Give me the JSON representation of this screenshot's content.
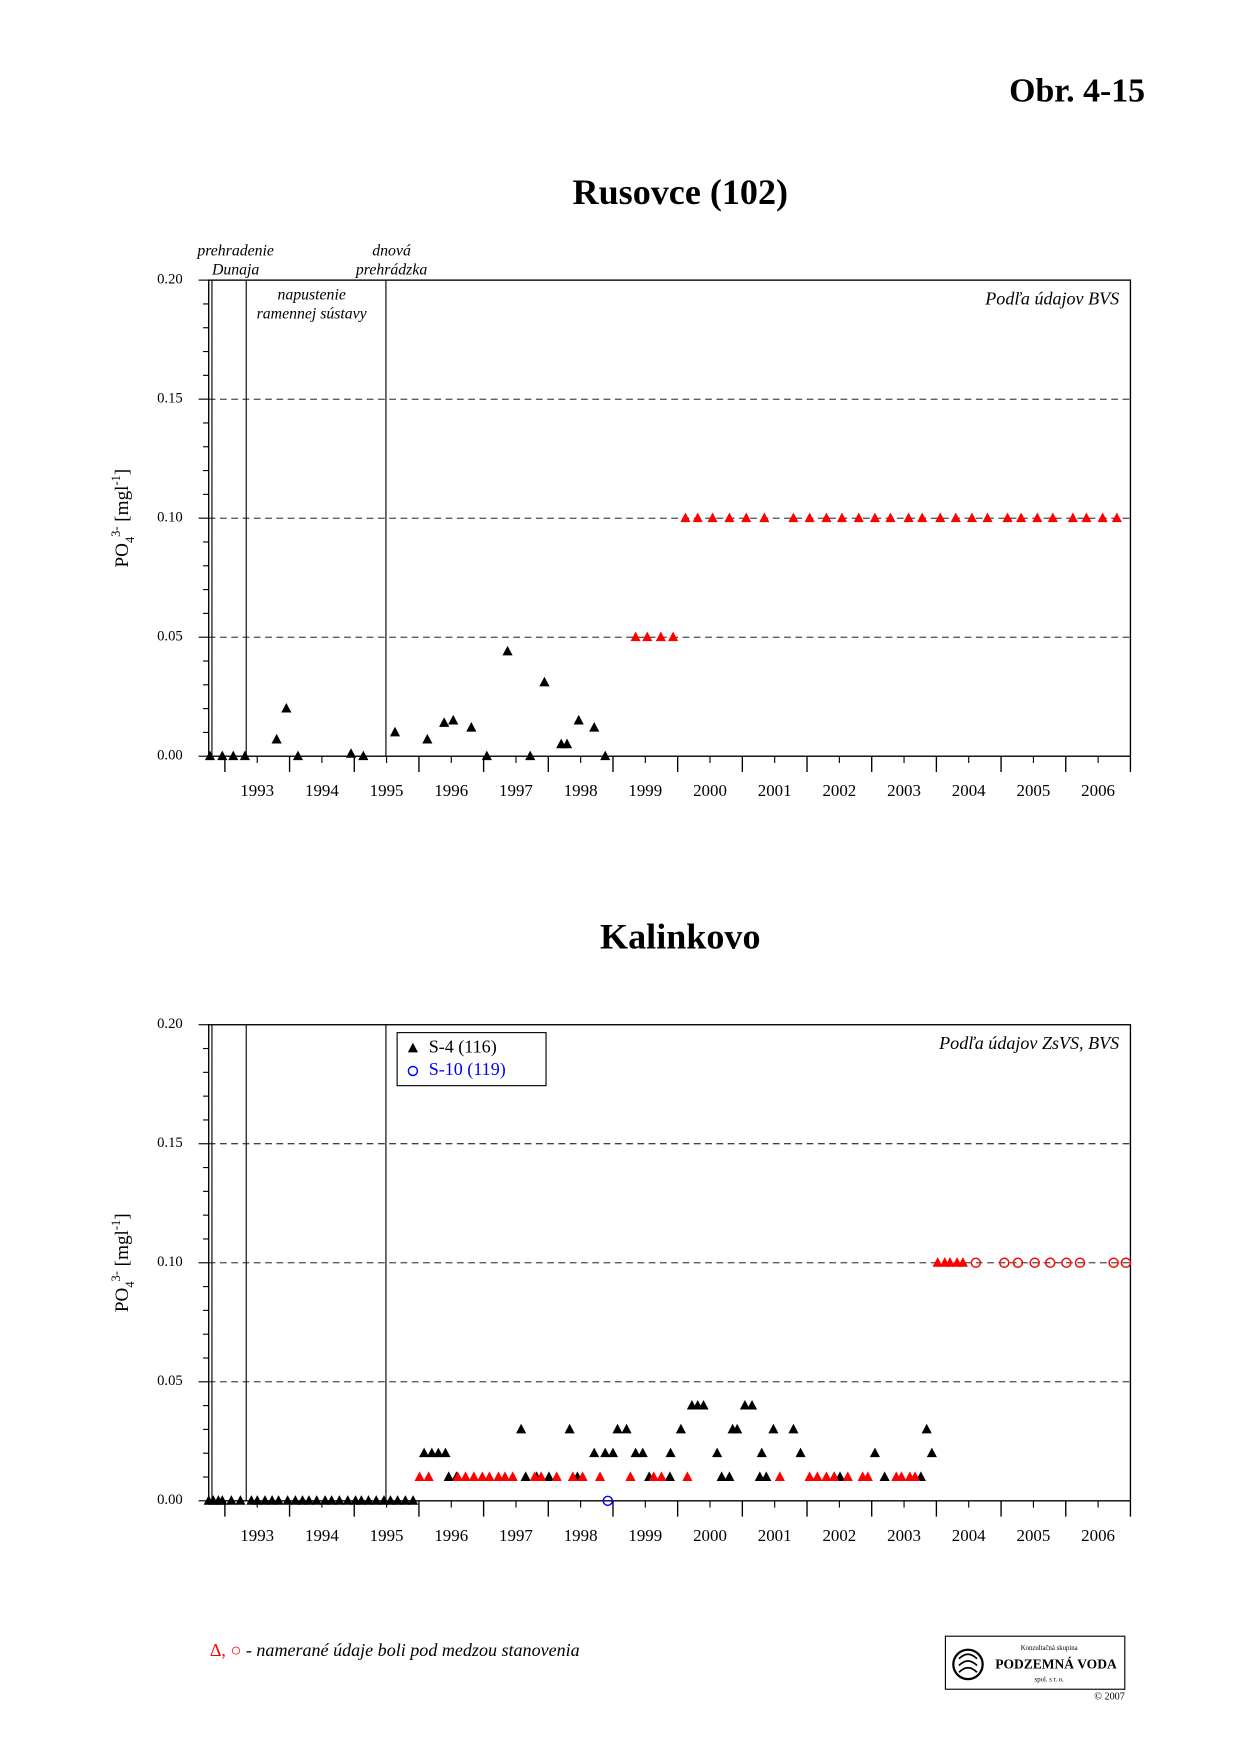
{
  "header": "Obr. 4-15",
  "footnote_symbols": "Δ, ○",
  "footnote": " - namerané údaje boli pod medzou stanovenia",
  "logo": {
    "line1": "Konzultačná skupina",
    "line2": "PODZEMNÁ VODA",
    "line3": "spol. s r. o.",
    "copyright": "© 2007"
  },
  "chart_data": [
    {
      "type": "scatter",
      "title": "Rusovce (102)",
      "source_note": "Podľa údajov BVS",
      "ylabel": {
        "base": "PO",
        "sub": "4",
        "sup": "3-",
        "unit": " [mgl",
        "unit_sup": "-1",
        "end": "]"
      },
      "xlim": [
        1992.75,
        2007
      ],
      "ylim": [
        0,
        0.2
      ],
      "yticks": [
        {
          "value": 0,
          "label": "0.00"
        },
        {
          "value": 0.05,
          "label": "0.05"
        },
        {
          "value": 0.1,
          "label": "0.10"
        },
        {
          "value": 0.15,
          "label": "0.15"
        },
        {
          "value": 0.2,
          "label": "0.20"
        }
      ],
      "yminorticks": [
        0.01,
        0.02,
        0.03,
        0.04,
        0.06,
        0.07,
        0.08,
        0.09,
        0.11,
        0.12,
        0.13,
        0.14,
        0.16,
        0.17,
        0.18,
        0.19
      ],
      "xticks": [
        {
          "value": 1993.5,
          "label": "1993"
        },
        {
          "value": 1994.5,
          "label": "1994"
        },
        {
          "value": 1995.5,
          "label": "1995"
        },
        {
          "value": 1996.5,
          "label": "1996"
        },
        {
          "value": 1997.5,
          "label": "1997"
        },
        {
          "value": 1998.5,
          "label": "1998"
        },
        {
          "value": 1999.5,
          "label": "1999"
        },
        {
          "value": 2000.5,
          "label": "2000"
        },
        {
          "value": 2001.5,
          "label": "2001"
        },
        {
          "value": 2002.5,
          "label": "2002"
        },
        {
          "value": 2003.5,
          "label": "2003"
        },
        {
          "value": 2004.5,
          "label": "2004"
        },
        {
          "value": 2005.5,
          "label": "2005"
        },
        {
          "value": 2006.5,
          "label": "2006"
        }
      ],
      "xmajorticks": [
        1993,
        1994,
        1995,
        1996,
        1997,
        1998,
        1999,
        2000,
        2001,
        2002,
        2003,
        2004,
        2005,
        2006,
        2007
      ],
      "grid": true,
      "events": [
        {
          "x": 1992.8,
          "label": [
            "prehradenie",
            "Dunaja"
          ],
          "pos": "above"
        },
        {
          "x": 1993.33,
          "label": [
            "napustenie",
            "ramennej sústavy"
          ],
          "pos": "inside"
        },
        {
          "x": 1995.49,
          "label": [
            "dnová",
            "prehrádzka"
          ],
          "pos": "above"
        }
      ],
      "series": [
        {
          "marker": "triangle",
          "color": "#000000",
          "x": [
            1992.77,
            1992.96,
            1993.13,
            1993.31,
            1993.8,
            1993.95,
            1994.13,
            1994.95,
            1995.14,
            1995.63,
            1996.13,
            1996.39,
            1996.53,
            1996.81,
            1997.05,
            1997.37,
            1997.72,
            1997.94,
            1998.2,
            1998.29,
            1998.47,
            1998.71,
            1998.88
          ],
          "values": [
            0,
            0,
            0,
            0,
            0.007,
            0.02,
            0,
            0.001,
            0,
            0.01,
            0.007,
            0.014,
            0.015,
            0.012,
            0,
            0.044,
            0,
            0.031,
            0.005,
            0.005,
            0.015,
            0.012,
            0
          ]
        },
        {
          "marker": "triangle",
          "color": "#ff0000",
          "x": [
            1999.35,
            1999.53,
            1999.74,
            1999.93,
            2000.12,
            2000.31,
            2000.54,
            2000.8,
            2001.06,
            2001.34,
            2001.79,
            2002.04,
            2002.3,
            2002.54,
            2002.8,
            2003.05,
            2003.29,
            2003.57,
            2003.78,
            2004.06,
            2004.3,
            2004.55,
            2004.79,
            2005.1,
            2005.31,
            2005.56,
            2005.8,
            2006.11,
            2006.32,
            2006.57,
            2006.79
          ],
          "values": [
            0.05,
            0.05,
            0.05,
            0.05,
            0.1,
            0.1,
            0.1,
            0.1,
            0.1,
            0.1,
            0.1,
            0.1,
            0.1,
            0.1,
            0.1,
            0.1,
            0.1,
            0.1,
            0.1,
            0.1,
            0.1,
            0.1,
            0.1,
            0.1,
            0.1,
            0.1,
            0.1,
            0.1,
            0.1,
            0.1,
            0.1
          ]
        }
      ]
    },
    {
      "type": "scatter",
      "title": "Kalinkovo",
      "source_note": "Podľa údajov ZsVS, BVS",
      "ylabel": {
        "base": "PO",
        "sub": "4",
        "sup": "3-",
        "unit": " [mgl",
        "unit_sup": "-1",
        "end": "]"
      },
      "xlim": [
        1992.75,
        2007
      ],
      "ylim": [
        0,
        0.2
      ],
      "yticks": [
        {
          "value": 0,
          "label": "0.00"
        },
        {
          "value": 0.05,
          "label": "0.05"
        },
        {
          "value": 0.1,
          "label": "0.10"
        },
        {
          "value": 0.15,
          "label": "0.15"
        },
        {
          "value": 0.2,
          "label": "0.20"
        }
      ],
      "yminorticks": [
        0.01,
        0.02,
        0.03,
        0.04,
        0.06,
        0.07,
        0.08,
        0.09,
        0.11,
        0.12,
        0.13,
        0.14,
        0.16,
        0.17,
        0.18,
        0.19
      ],
      "xticks": [
        {
          "value": 1993.5,
          "label": "1993"
        },
        {
          "value": 1994.5,
          "label": "1994"
        },
        {
          "value": 1995.5,
          "label": "1995"
        },
        {
          "value": 1996.5,
          "label": "1996"
        },
        {
          "value": 1997.5,
          "label": "1997"
        },
        {
          "value": 1998.5,
          "label": "1998"
        },
        {
          "value": 1999.5,
          "label": "1999"
        },
        {
          "value": 2000.5,
          "label": "2000"
        },
        {
          "value": 2001.5,
          "label": "2001"
        },
        {
          "value": 2002.5,
          "label": "2002"
        },
        {
          "value": 2003.5,
          "label": "2003"
        },
        {
          "value": 2004.5,
          "label": "2004"
        },
        {
          "value": 2005.5,
          "label": "2005"
        },
        {
          "value": 2006.5,
          "label": "2006"
        }
      ],
      "xmajorticks": [
        1993,
        1994,
        1995,
        1996,
        1997,
        1998,
        1999,
        2000,
        2001,
        2002,
        2003,
        2004,
        2005,
        2006,
        2007
      ],
      "grid": true,
      "legend": "top-left",
      "events": [
        {
          "x": 1992.8
        },
        {
          "x": 1993.33
        },
        {
          "x": 1995.49
        }
      ],
      "series": [
        {
          "name": "S-4 (116)",
          "marker": "triangle",
          "color": "#000000",
          "x": [
            1992.75,
            1992.82,
            1992.9,
            1992.96,
            1993.1,
            1993.24,
            1993.41,
            1993.5,
            1993.62,
            1993.73,
            1993.83,
            1993.97,
            1994.09,
            1994.2,
            1994.3,
            1994.42,
            1994.55,
            1994.65,
            1994.77,
            1994.9,
            1995.02,
            1995.11,
            1995.22,
            1995.34,
            1995.46,
            1995.56,
            1995.67,
            1995.79,
            1995.91,
            1996.08,
            1996.2,
            1996.3,
            1996.41,
            1996.46,
            1996.58,
            1997.58,
            1997.65,
            1997.82,
            1998.01,
            1998.33,
            1998.45,
            1998.71,
            1998.88,
            1999,
            1999.07,
            1999.21,
            1999.35,
            1999.46,
            1999.56,
            1999.88,
            1999.89,
            2000.05,
            2000.22,
            2000.31,
            2000.4,
            2000.61,
            2000.68,
            2000.8,
            2000.85,
            2000.92,
            2001.04,
            2001.15,
            2001.27,
            2001.3,
            2001.37,
            2001.48,
            2001.79,
            2001.9,
            2002.42,
            2002.51,
            2003.05,
            2003.2,
            2003.76,
            2003.85,
            2003.93
          ],
          "values": [
            0,
            0,
            0,
            0,
            0,
            0,
            0,
            0,
            0,
            0,
            0,
            0,
            0,
            0,
            0,
            0,
            0,
            0,
            0,
            0,
            0,
            0,
            0,
            0,
            0,
            0,
            0,
            0,
            0,
            0.02,
            0.02,
            0.02,
            0.02,
            0.01,
            0.01,
            0.03,
            0.01,
            0.01,
            0.01,
            0.03,
            0.01,
            0.02,
            0.02,
            0.02,
            0.03,
            0.03,
            0.02,
            0.02,
            0.01,
            0.01,
            0.02,
            0.03,
            0.04,
            0.04,
            0.04,
            0.02,
            0.01,
            0.01,
            0.03,
            0.03,
            0.04,
            0.04,
            0.01,
            0.02,
            0.01,
            0.03,
            0.03,
            0.02,
            0.01,
            0.01,
            0.02,
            0.01,
            0.01,
            0.03,
            0.02
          ]
        },
        {
          "marker": "triangle",
          "color": "#ff0000",
          "x": [
            1996.01,
            1996.15,
            1996.6,
            1996.72,
            1996.85,
            1996.98,
            1997.09,
            1997.23,
            1997.33,
            1997.45,
            1997.79,
            1997.89,
            1998.13,
            1998.38,
            1998.53,
            1998.8,
            1999.27,
            1999.63,
            1999.75,
            2000.15,
            2001.58,
            2002.04,
            2002.16,
            2002.3,
            2002.42,
            2002.63,
            2002.86,
            2002.94,
            2003.38,
            2003.46,
            2003.59,
            2003.67,
            2004.02,
            2004.13,
            2004.21,
            2004.32,
            2004.41
          ],
          "values": [
            0.01,
            0.01,
            0.01,
            0.01,
            0.01,
            0.01,
            0.01,
            0.01,
            0.01,
            0.01,
            0.01,
            0.01,
            0.01,
            0.01,
            0.01,
            0.01,
            0.01,
            0.01,
            0.01,
            0.01,
            0.01,
            0.01,
            0.01,
            0.01,
            0.01,
            0.01,
            0.01,
            0.01,
            0.01,
            0.01,
            0.01,
            0.01,
            0.1,
            0.1,
            0.1,
            0.1,
            0.1
          ]
        },
        {
          "name": "S-10 (119)",
          "marker": "circle",
          "color": "#0000ff",
          "x": [
            1998.92
          ],
          "values": [
            0
          ]
        },
        {
          "marker": "circle",
          "color": "#ff0000",
          "x": [
            2004.61,
            2005.05,
            2005.26,
            2005.52,
            2005.76,
            2006.01,
            2006.22,
            2006.74,
            2006.93
          ],
          "values": [
            0.1,
            0.1,
            0.1,
            0.1,
            0.1,
            0.1,
            0.1,
            0.1,
            0.1
          ]
        }
      ]
    }
  ]
}
